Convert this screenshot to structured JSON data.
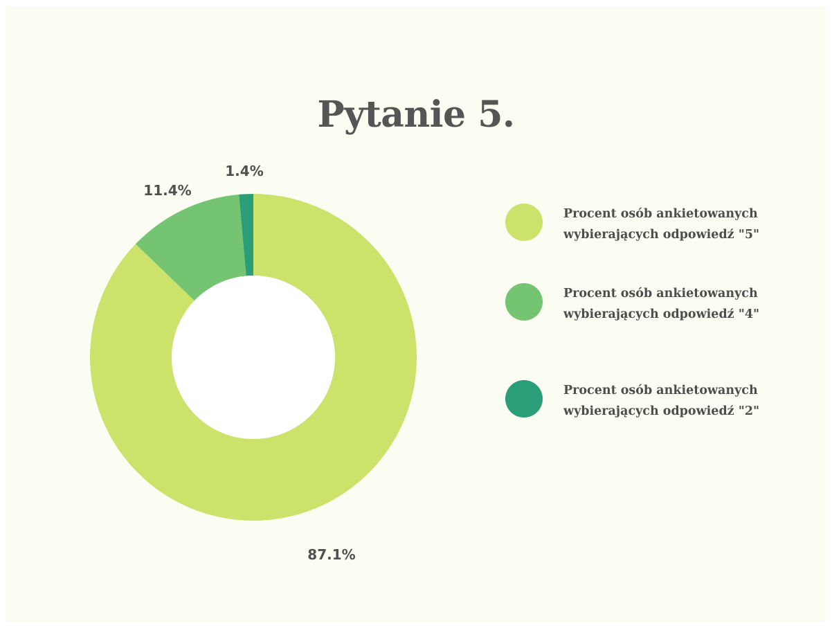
{
  "chart_data": {
    "type": "pie",
    "style": "donut",
    "title": "Pytanie 5.",
    "legend_position": "right",
    "series": [
      {
        "name": "Procent osób ankietowanych wybierających odpowiedź  \"5\"",
        "value": 87.1,
        "label": "87.1%",
        "color": "#cbe26b"
      },
      {
        "name": "Procent osób ankietowanych wybierających odpowiedź  \"4\"",
        "value": 11.4,
        "label": "11.4%",
        "color": "#75c472"
      },
      {
        "name": "Procent osób ankietowanych wybierających odpowiedź  \"2\"",
        "value": 1.4,
        "label": "1.4%",
        "color": "#2a9e78"
      }
    ]
  },
  "legend": [
    {
      "line1": "Procent osób ankietowanych",
      "line2": "wybierających odpowiedź  \"5\""
    },
    {
      "line1": "Procent osób ankietowanych",
      "line2": "wybierających odpowiedź  \"4\""
    },
    {
      "line1": "Procent osób ankietowanych",
      "line2": "wybierających odpowiedź  \"2\""
    }
  ]
}
